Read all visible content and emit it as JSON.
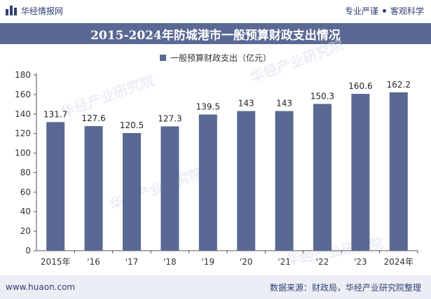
{
  "header": {
    "brand_name": "华经情报网",
    "tag_left": "专业严谨",
    "tag_right": "客观科学"
  },
  "footer": {
    "website": "www.huaon.com",
    "source": "数据来源：财政局，华经产业研究院整理"
  },
  "watermark_text": "华经产业研究院",
  "colors": {
    "bar": "#5a6993",
    "title_bg": "#5a6993",
    "brand": "#2f3f73"
  },
  "chart_data": {
    "type": "bar",
    "title": "2015-2024年防城港市一般预算财政支出情况",
    "legend": "一般预算财政支出（亿元）",
    "categories": [
      "2015年",
      "'16",
      "'17",
      "'18",
      "'19",
      "'20",
      "'21",
      "'22",
      "'23",
      "2024年"
    ],
    "series": [
      {
        "name": "一般预算财政支出（亿元）",
        "values": [
          131.7,
          127.6,
          120.5,
          127.3,
          139.5,
          143,
          143,
          150.3,
          160.6,
          162.2
        ]
      }
    ],
    "ylim": [
      0,
      180
    ],
    "yticks": [
      0,
      20,
      40,
      60,
      80,
      100,
      120,
      140,
      160,
      180
    ],
    "grid": false,
    "legend_position": "top"
  }
}
